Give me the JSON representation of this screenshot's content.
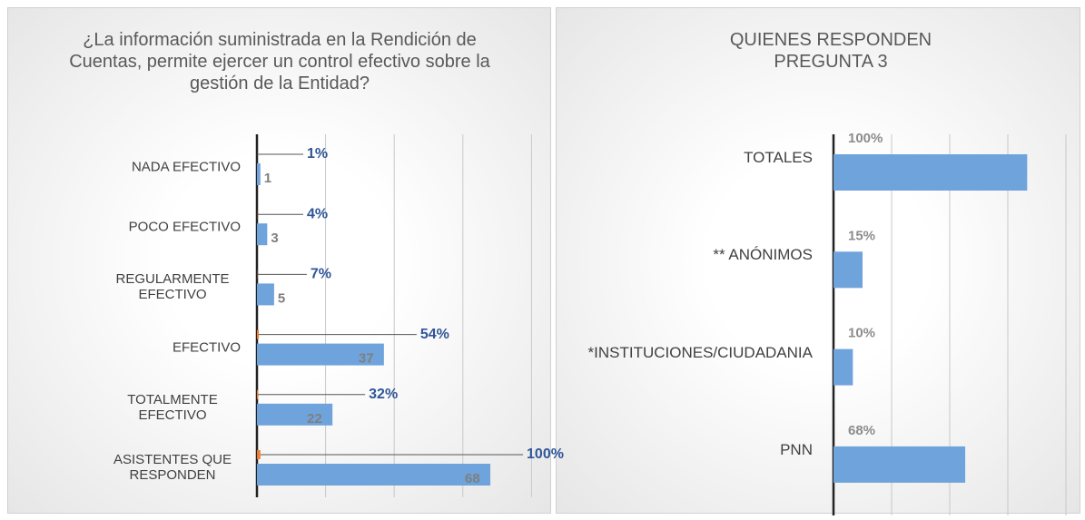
{
  "chart_data": [
    {
      "type": "bar",
      "title": "¿La información suministrada en la Rendición de Cuentas, permite ejercer un control efectivo sobre la gestión de la Entidad?",
      "categories": [
        "NADA EFECTIVO",
        "POCO EFECTIVO",
        "REGULARMENTE EFECTIVO",
        "EFECTIVO",
        "TOTALMENTE EFECTIVO",
        "ASISTENTES QUE RESPONDEN"
      ],
      "series": [
        {
          "color": "#6fa3dc",
          "values": [
            1,
            3,
            5,
            37,
            22,
            68
          ]
        },
        {
          "color": "#ed7d31",
          "values": [
            0.01,
            0.04,
            0.07,
            0.54,
            0.32,
            1
          ],
          "value_labels": [
            "1%",
            "4%",
            "7%",
            "54%",
            "32%",
            "100%"
          ]
        }
      ],
      "xlim": [
        0,
        80
      ],
      "xticks": [
        0,
        20,
        40,
        60,
        80
      ],
      "grid": true
    },
    {
      "type": "bar",
      "title": "QUIENES RESPONDEN PREGUNTA 3",
      "categories": [
        "TOTALES",
        "** ANÓNIMOS",
        "*INSTITUCIONES/CIUDADANIA",
        "PNN"
      ],
      "values": [
        100,
        15,
        10,
        68
      ],
      "value_labels": [
        "100%",
        "15%",
        "10%",
        "68%"
      ],
      "color": "#6fa3dc",
      "xlim": [
        0,
        120
      ],
      "xticks": [
        0,
        30,
        60,
        90,
        120
      ],
      "grid": true
    }
  ]
}
